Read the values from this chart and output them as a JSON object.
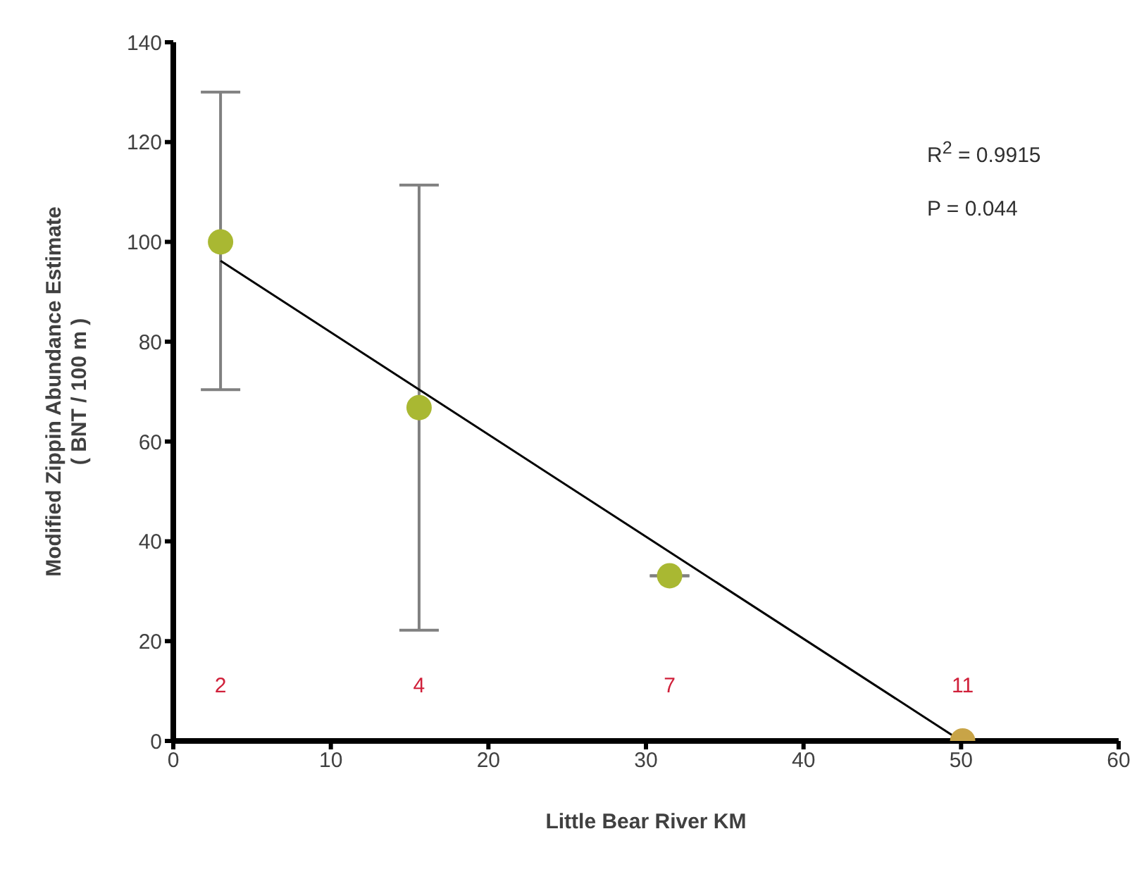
{
  "chart_data": {
    "type": "scatter",
    "xlabel": "Little Bear River KM",
    "ylabel": "Modified Zippin Abundance Estimate\n( BNT / 100 m )",
    "xlim": [
      0,
      60
    ],
    "xticks": [
      0,
      10,
      20,
      30,
      40,
      50,
      60
    ],
    "ylim": [
      0,
      140
    ],
    "yticks": [
      0,
      20,
      40,
      60,
      80,
      100,
      120,
      140
    ],
    "grid": false,
    "legend": false,
    "series": [
      {
        "marker": "circle",
        "x": [
          3,
          15.6,
          31.5,
          50.1
        ],
        "values": [
          100,
          66.8,
          33.1,
          0
        ],
        "colors": [
          "#a9b832",
          "#a9b832",
          "#a9b832",
          "#c8a447"
        ],
        "errors": [
          [
            70.4,
            130
          ],
          [
            22.2,
            111.4
          ],
          null,
          null
        ]
      },
      {
        "type": "line",
        "color": "#000000",
        "x": [
          3,
          50
        ],
        "values": [
          96.2,
          0
        ]
      }
    ],
    "annotations": [
      "R$^{2}$ = 0.9915",
      "P = 0.044",
      "2",
      "4",
      "7",
      "11"
    ]
  }
}
